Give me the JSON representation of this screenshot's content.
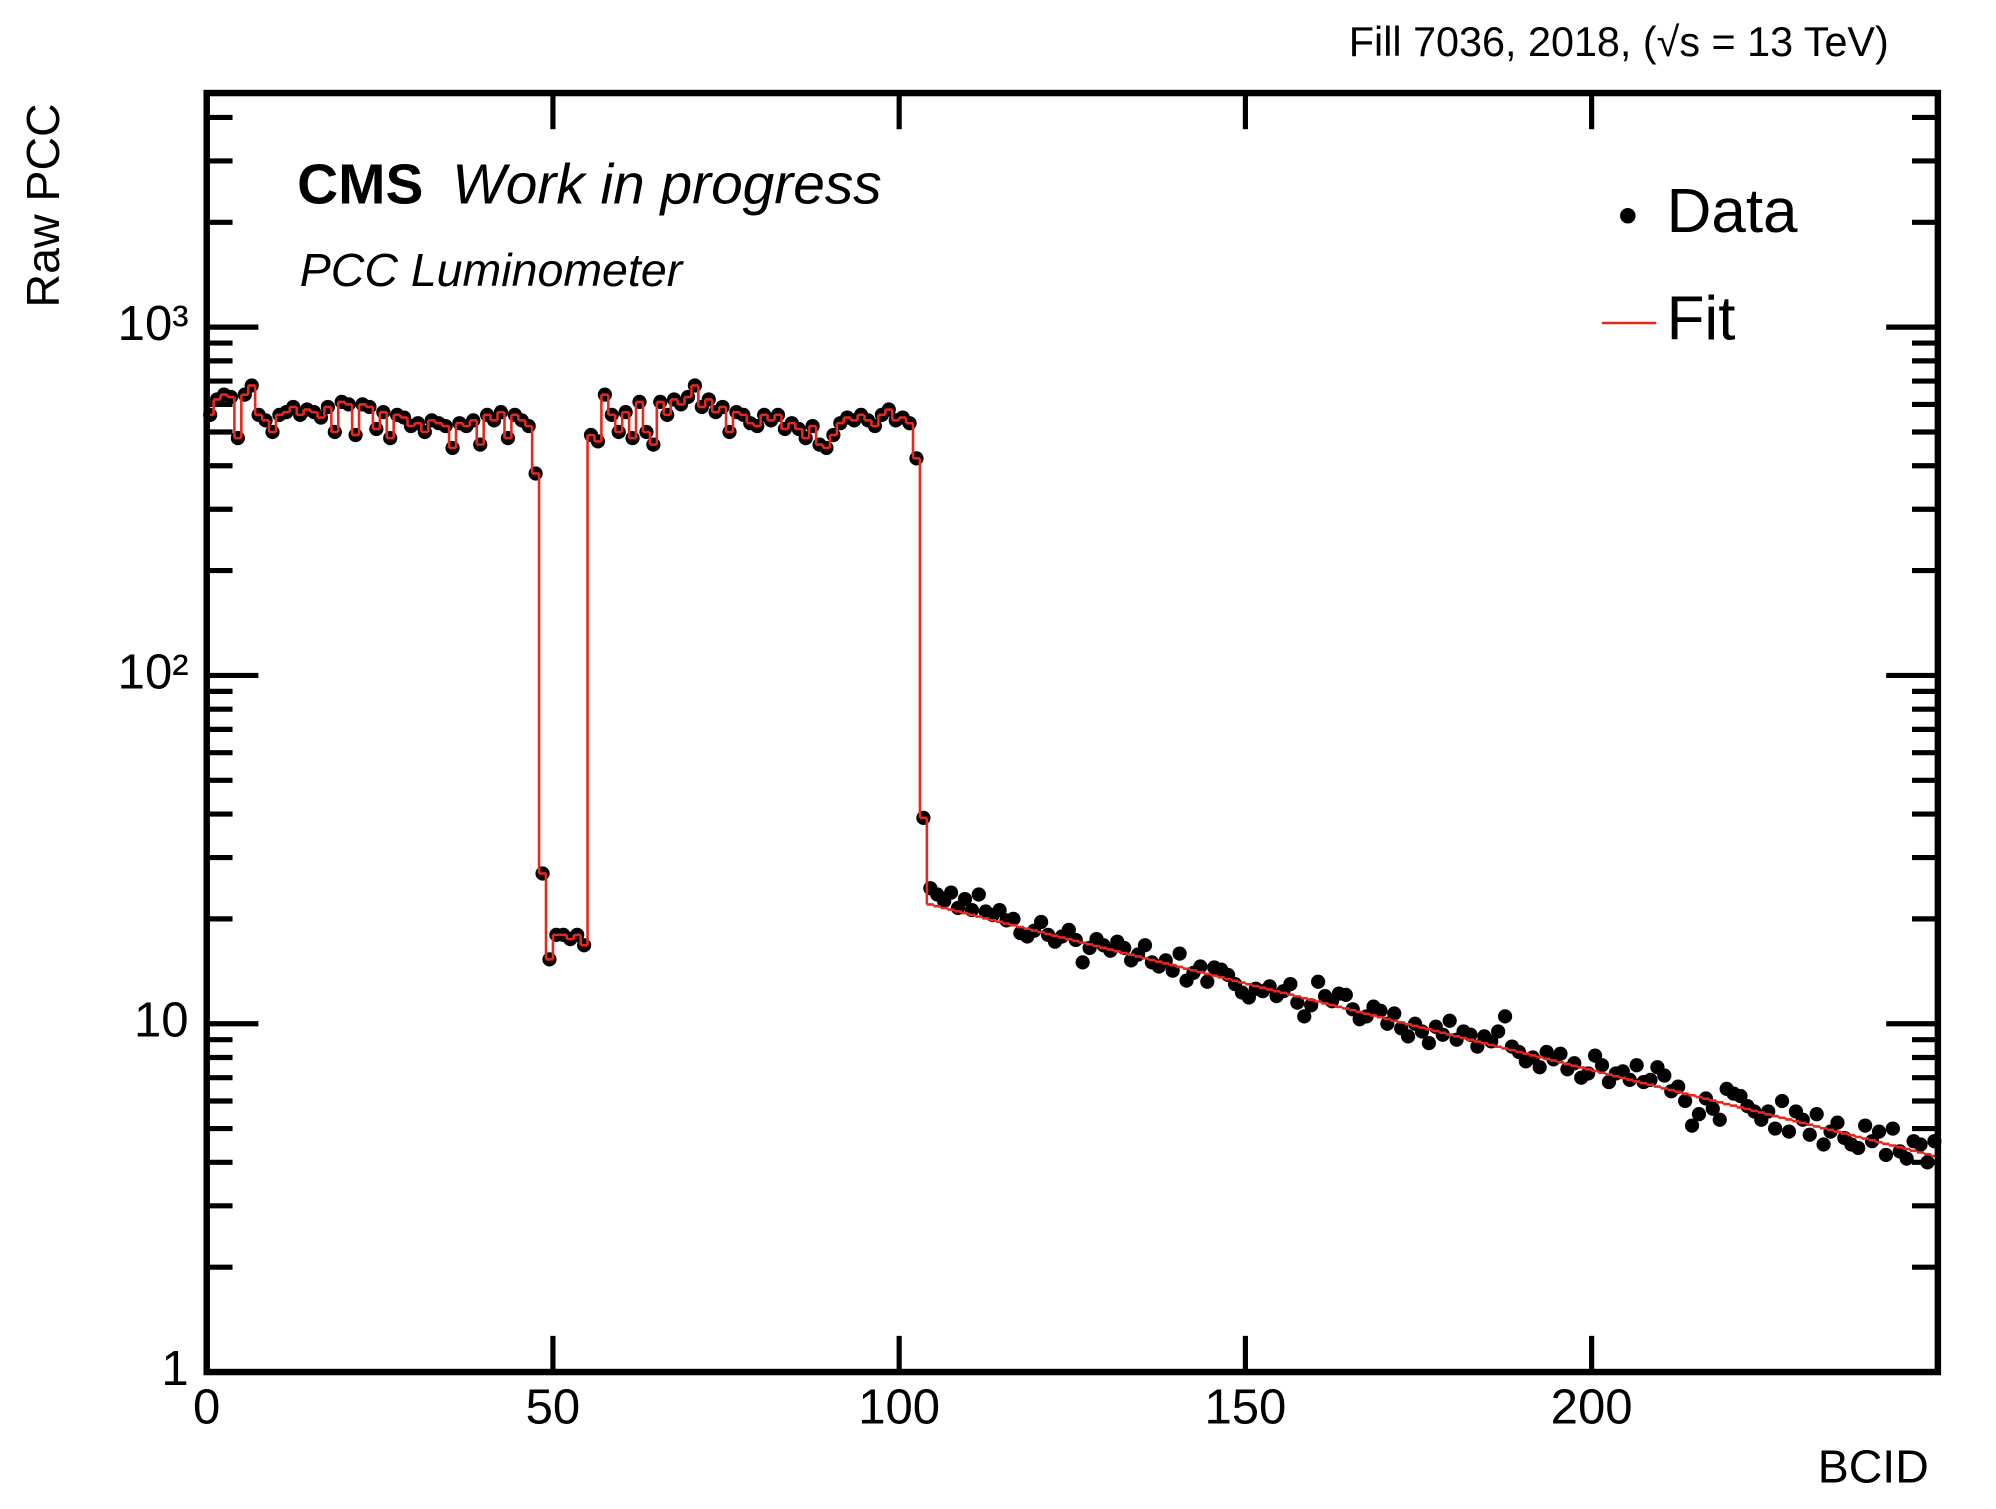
{
  "chart_data": {
    "type": "scatter",
    "header": "Fill 7036,  2018,  (√s = 13 TeV)",
    "title": "CMS",
    "subtitle": "Work in progress",
    "annotation": "PCC Luminometer",
    "x_label": "BCID",
    "y_label": "Raw PCC",
    "logy": true,
    "legend": "top-right",
    "xlim": [
      0,
      250
    ],
    "ylim": [
      1,
      4700
    ],
    "xticks": [
      0,
      50,
      100,
      150,
      200
    ],
    "yticks": [
      1,
      10,
      {
        "value": 100,
        "label": "10²"
      },
      {
        "value": 1000,
        "label": "10³"
      }
    ],
    "yminorticks": [
      2,
      3,
      4,
      5,
      6,
      7,
      8,
      9,
      20,
      30,
      40,
      50,
      60,
      70,
      80,
      90,
      200,
      300,
      400,
      500,
      600,
      700,
      800,
      900,
      2000,
      3000,
      4000
    ],
    "x": [
      0.5,
      1.5,
      2.5,
      3.5,
      4.5,
      5.5,
      6.5,
      7.5,
      8.5,
      9.5,
      10.5,
      11.5,
      12.5,
      13.5,
      14.5,
      15.5,
      16.5,
      17.5,
      18.5,
      19.5,
      20.5,
      21.5,
      22.5,
      23.5,
      24.5,
      25.5,
      26.5,
      27.5,
      28.5,
      29.5,
      30.5,
      31.5,
      32.5,
      33.5,
      34.5,
      35.5,
      36.5,
      37.5,
      38.5,
      39.5,
      40.5,
      41.5,
      42.5,
      43.5,
      44.5,
      45.5,
      46.5,
      47.5,
      48.5,
      49.5,
      50.5,
      51.5,
      52.5,
      53.5,
      54.5,
      55.5,
      56.5,
      57.5,
      58.5,
      59.5,
      60.5,
      61.5,
      62.5,
      63.5,
      64.5,
      65.5,
      66.5,
      67.5,
      68.5,
      69.5,
      70.5,
      71.5,
      72.5,
      73.5,
      74.5,
      75.5,
      76.5,
      77.5,
      78.5,
      79.5,
      80.5,
      81.5,
      82.5,
      83.5,
      84.5,
      85.5,
      86.5,
      87.5,
      88.5,
      89.5,
      90.5,
      91.5,
      92.5,
      93.5,
      94.5,
      95.5,
      96.5,
      97.5,
      98.5,
      99.5,
      100.5,
      101.5,
      102.5,
      103.5,
      104.5,
      105.5,
      106.5,
      107.5,
      108.5,
      109.5,
      110.5,
      111.5,
      112.5,
      113.5,
      114.5,
      115.5,
      116.5,
      117.5,
      118.5,
      119.5,
      120.5,
      121.5,
      122.5,
      123.5,
      124.5,
      125.5,
      126.5,
      127.5,
      128.5,
      129.5,
      130.5,
      131.5,
      132.5,
      133.5,
      134.5,
      135.5,
      136.5,
      137.5,
      138.5,
      139.5,
      140.5,
      141.5,
      142.5,
      143.5,
      144.5,
      145.5,
      146.5,
      147.5,
      148.5,
      149.5,
      150.5,
      151.5,
      152.5,
      153.5,
      154.5,
      155.5,
      156.5,
      157.5,
      158.5,
      159.5,
      160.5,
      161.5,
      162.5,
      163.5,
      164.5,
      165.5,
      166.5,
      167.5,
      168.5,
      169.5,
      170.5,
      171.5,
      172.5,
      173.5,
      174.5,
      175.5,
      176.5,
      177.5,
      178.5,
      179.5,
      180.5,
      181.5,
      182.5,
      183.5,
      184.5,
      185.5,
      186.5,
      187.5,
      188.5,
      189.5,
      190.5,
      191.5,
      192.5,
      193.5,
      194.5,
      195.5,
      196.5,
      197.5,
      198.5,
      199.5,
      200.5,
      201.5,
      202.5,
      203.5,
      204.5,
      205.5,
      206.5,
      207.5,
      208.5,
      209.5,
      210.5,
      211.5,
      212.5,
      213.5,
      214.5,
      215.5,
      216.5,
      217.5,
      218.5,
      219.5,
      220.5,
      221.5,
      222.5,
      223.5,
      224.5,
      225.5,
      226.5,
      227.5,
      228.5,
      229.5,
      230.5,
      231.5,
      232.5,
      233.5,
      234.5,
      235.5,
      236.5,
      237.5,
      238.5,
      239.5,
      240.5,
      241.5,
      242.5,
      243.5,
      244.5,
      245.5,
      246.5,
      247.5,
      248.5,
      249.5
    ],
    "series": [
      {
        "name": "Data",
        "color": "#000000",
        "marker": "circle",
        "values": [
          560,
          620,
          640,
          630,
          480,
          640,
          680,
          560,
          540,
          500,
          560,
          570,
          590,
          560,
          580,
          570,
          550,
          590,
          500,
          610,
          600,
          490,
          600,
          590,
          510,
          570,
          480,
          560,
          550,
          520,
          530,
          500,
          540,
          530,
          520,
          450,
          530,
          520,
          540,
          460,
          560,
          540,
          570,
          480,
          560,
          540,
          520,
          380,
          27,
          15.3,
          18,
          18,
          17.5,
          18,
          16.8,
          490,
          470,
          640,
          560,
          500,
          570,
          480,
          610,
          500,
          460,
          610,
          560,
          620,
          600,
          630,
          680,
          590,
          620,
          570,
          590,
          500,
          570,
          560,
          530,
          520,
          560,
          540,
          560,
          510,
          530,
          510,
          480,
          520,
          460,
          450,
          490,
          530,
          550,
          540,
          560,
          540,
          520,
          560,
          580,
          540,
          550,
          530,
          420,
          39,
          24.5,
          23.5,
          22.5,
          23.8,
          21.5,
          22.8,
          21.2,
          23.5,
          21.0,
          20.5,
          21.2,
          19.8,
          20.0,
          18.2,
          17.8,
          18.5,
          19.6,
          18.0,
          17.2,
          17.8,
          18.6,
          17.4,
          15.0,
          16.5,
          17.5,
          16.8,
          16.2,
          17.2,
          16.5,
          15.2,
          15.8,
          16.8,
          15.0,
          14.6,
          15.2,
          14.2,
          15.9,
          13.3,
          14.0,
          14.6,
          13.2,
          14.5,
          14.3,
          13.8,
          13.0,
          12.3,
          11.9,
          12.6,
          12.4,
          12.8,
          12.0,
          12.4,
          13.0,
          11.5,
          10.5,
          11.3,
          13.2,
          12.0,
          11.6,
          12.2,
          12.1,
          11.0,
          10.3,
          10.5,
          11.2,
          10.9,
          10.0,
          10.7,
          9.7,
          9.2,
          10.0,
          9.5,
          8.8,
          9.8,
          9.3,
          10.2,
          9.0,
          9.5,
          9.3,
          8.6,
          9.2,
          8.9,
          9.5,
          10.5,
          8.6,
          8.3,
          7.8,
          8.0,
          7.5,
          8.3,
          7.9,
          8.2,
          7.4,
          7.7,
          7.0,
          7.2,
          8.1,
          7.6,
          6.8,
          7.2,
          7.3,
          6.9,
          7.6,
          6.8,
          6.9,
          7.5,
          7.1,
          6.4,
          6.6,
          6.0,
          5.1,
          5.5,
          6.1,
          5.7,
          5.3,
          6.5,
          6.3,
          6.2,
          5.8,
          5.6,
          5.3,
          5.6,
          5.0,
          6.0,
          4.9,
          5.6,
          5.3,
          4.8,
          5.5,
          4.5,
          4.9,
          5.2,
          4.7,
          4.5,
          4.4,
          5.1,
          4.6,
          4.9,
          4.2,
          5.0,
          4.3,
          4.1,
          4.6,
          4.5,
          4.0,
          4.6
        ]
      },
      {
        "name": "Fit",
        "color": "#e8281e",
        "values": [
          560,
          620,
          640,
          630,
          480,
          640,
          680,
          560,
          540,
          500,
          560,
          570,
          590,
          560,
          580,
          570,
          550,
          590,
          500,
          610,
          600,
          490,
          600,
          590,
          510,
          570,
          480,
          560,
          550,
          520,
          530,
          500,
          540,
          530,
          520,
          450,
          530,
          520,
          540,
          460,
          560,
          540,
          570,
          480,
          560,
          540,
          520,
          380,
          27,
          15.3,
          18,
          18,
          17.5,
          18,
          16.8,
          490,
          470,
          640,
          560,
          500,
          570,
          480,
          610,
          500,
          460,
          610,
          560,
          620,
          600,
          630,
          680,
          590,
          620,
          570,
          590,
          500,
          570,
          560,
          530,
          520,
          560,
          540,
          560,
          510,
          530,
          510,
          480,
          520,
          460,
          450,
          490,
          530,
          550,
          540,
          560,
          540,
          520,
          560,
          580,
          540,
          550,
          530,
          420,
          39,
          22.0,
          21.75,
          21.5,
          21.26,
          21.02,
          20.78,
          20.54,
          20.31,
          20.07,
          19.84,
          19.62,
          19.39,
          19.17,
          18.95,
          18.74,
          18.52,
          18.31,
          18.1,
          17.9,
          17.69,
          17.49,
          17.29,
          17.09,
          16.9,
          16.71,
          16.52,
          16.33,
          16.14,
          15.96,
          15.78,
          15.6,
          15.42,
          15.24,
          15.07,
          14.9,
          14.73,
          14.56,
          14.39,
          14.23,
          14.07,
          13.9,
          13.75,
          13.59,
          13.43,
          13.28,
          13.13,
          12.98,
          12.83,
          12.69,
          12.54,
          12.4,
          12.26,
          12.12,
          11.98,
          11.84,
          11.71,
          11.58,
          11.44,
          11.31,
          11.18,
          11.06,
          10.93,
          10.81,
          10.68,
          10.56,
          10.44,
          10.32,
          10.2,
          10.09,
          9.97,
          9.86,
          9.75,
          9.64,
          9.53,
          9.42,
          9.31,
          9.2,
          9.1,
          9.0,
          8.89,
          8.79,
          8.69,
          8.59,
          8.49,
          8.4,
          8.3,
          8.21,
          8.11,
          8.02,
          7.93,
          7.84,
          7.75,
          7.66,
          7.57,
          7.49,
          7.4,
          7.32,
          7.23,
          7.15,
          7.07,
          6.99,
          6.91,
          6.83,
          6.75,
          6.68,
          6.6,
          6.52,
          6.45,
          6.38,
          6.3,
          6.23,
          6.16,
          6.09,
          6.02,
          5.95,
          5.88,
          5.82,
          5.75,
          5.69,
          5.62,
          5.56,
          5.49,
          5.43,
          5.37,
          5.31,
          5.25,
          5.19,
          5.13,
          5.07,
          5.01,
          4.96,
          4.9,
          4.84,
          4.79,
          4.73,
          4.68,
          4.63,
          4.57,
          4.52,
          4.47,
          4.42,
          4.37,
          4.32,
          4.27,
          4.22,
          4.17
        ]
      }
    ]
  }
}
